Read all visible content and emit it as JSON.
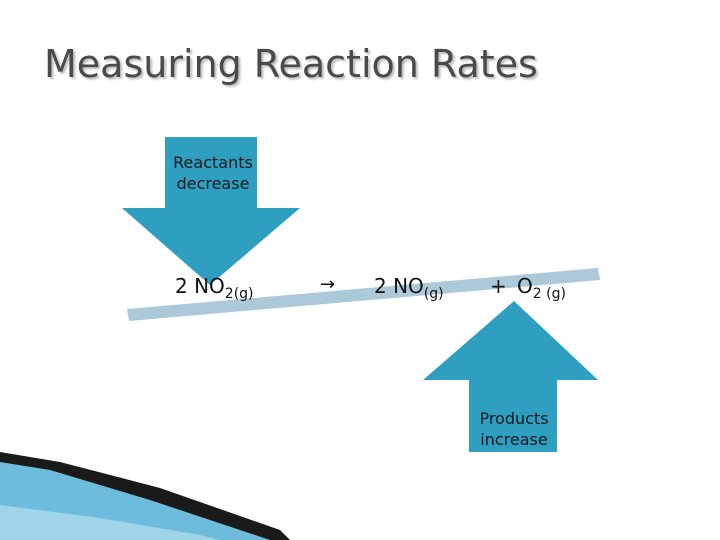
{
  "slide": {
    "title": "Measuring Reaction Rates",
    "colors": {
      "arrow_fill": "#2e9fc0",
      "balance_bar": "#abc9d8",
      "title_text": "#4a4a4a",
      "corner_swoosh": "#1a1a1a",
      "corner_accent": "#3ea6cf"
    }
  },
  "reactants_arrow": {
    "direction": "down",
    "line1": "Reactants",
    "line2": "decrease"
  },
  "products_arrow": {
    "direction": "up",
    "line1": "Products",
    "line2": "increase"
  },
  "equation": {
    "reactant_coeff_formula": "2 NO",
    "reactant_subscript": "2(g)",
    "arrow": "→",
    "product1": "2  NO",
    "product1_subscript": "(g)",
    "plus": "+",
    "product2": "O",
    "product2_subscript": "2 (g)"
  }
}
